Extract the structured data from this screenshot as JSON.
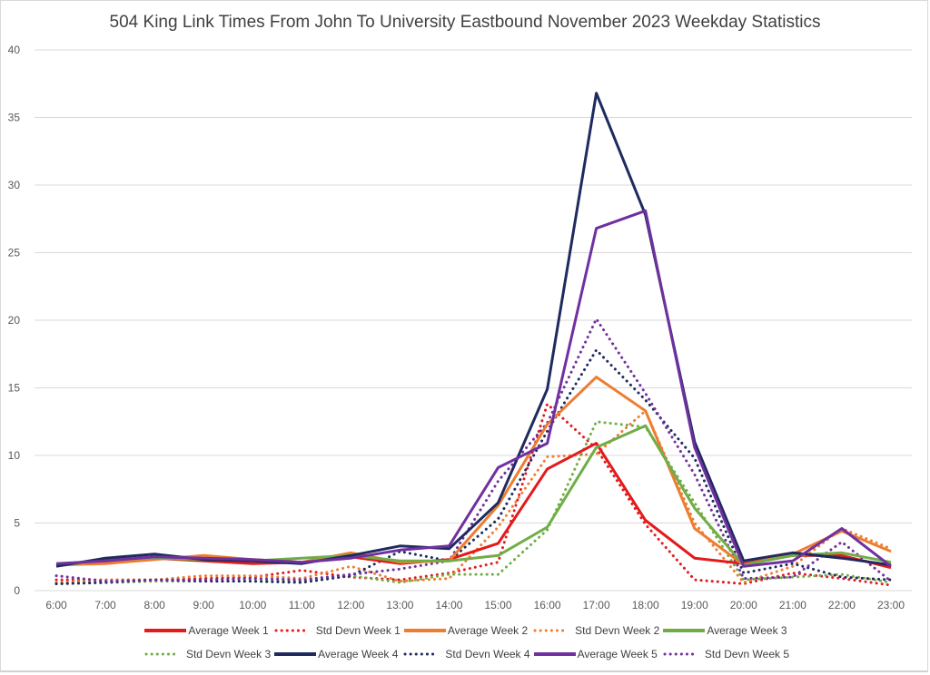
{
  "chart_data": {
    "type": "line",
    "title": "504 King Link Times From John To University Eastbound November 2023 Weekday Statistics",
    "xlabel": "",
    "ylabel": "",
    "ylim": [
      0,
      40
    ],
    "yticks": [
      "0",
      "5",
      "10",
      "15",
      "20",
      "25",
      "30",
      "35",
      "40"
    ],
    "grid": true,
    "legend_position": "bottom",
    "categories": [
      "6:00",
      "7:00",
      "8:00",
      "9:00",
      "10:00",
      "11:00",
      "12:00",
      "13:00",
      "14:00",
      "15:00",
      "16:00",
      "17:00",
      "18:00",
      "19:00",
      "20:00",
      "21:00",
      "22:00",
      "23:00"
    ],
    "series": [
      {
        "name": "Average Week 1",
        "color": "#e31a1c",
        "style": "solid",
        "values": [
          1.9,
          2.1,
          2.4,
          2.2,
          2.0,
          2.1,
          2.5,
          2.0,
          2.3,
          3.5,
          9.0,
          10.9,
          5.2,
          2.4,
          2.0,
          2.6,
          2.6,
          1.7
        ]
      },
      {
        "name": "Std Devn Week 1",
        "color": "#e31a1c",
        "style": "dotted",
        "values": [
          0.8,
          0.8,
          0.8,
          0.9,
          1.0,
          1.5,
          1.0,
          0.8,
          1.3,
          2.1,
          13.8,
          10.5,
          4.9,
          0.8,
          0.5,
          1.3,
          0.9,
          0.4
        ]
      },
      {
        "name": "Average Week 2",
        "color": "#ed7d31",
        "style": "solid",
        "values": [
          1.9,
          2.0,
          2.3,
          2.6,
          2.3,
          2.1,
          2.8,
          2.1,
          2.2,
          6.3,
          12.3,
          15.8,
          13.3,
          4.6,
          1.9,
          2.7,
          4.4,
          2.9
        ]
      },
      {
        "name": "Std Devn Week 2",
        "color": "#ed7d31",
        "style": "dotted",
        "values": [
          0.6,
          0.8,
          0.8,
          1.1,
          1.1,
          0.9,
          1.8,
          0.7,
          0.9,
          4.7,
          9.9,
          10.1,
          13.3,
          5.0,
          0.6,
          1.8,
          4.6,
          3.1
        ]
      },
      {
        "name": "Average Week 3",
        "color": "#70ad47",
        "style": "solid",
        "values": [
          1.8,
          2.3,
          2.4,
          2.3,
          2.2,
          2.4,
          2.6,
          2.2,
          2.2,
          2.6,
          4.7,
          10.6,
          12.2,
          6.1,
          1.9,
          2.6,
          2.8,
          2.1
        ]
      },
      {
        "name": "Std Devn Week 3",
        "color": "#70ad47",
        "style": "dotted",
        "values": [
          0.5,
          0.6,
          0.7,
          0.7,
          0.7,
          0.7,
          1.1,
          0.6,
          1.2,
          1.2,
          4.5,
          12.5,
          12.1,
          6.5,
          0.8,
          1.0,
          1.2,
          0.6
        ]
      },
      {
        "name": "Average Week 4",
        "color": "#1f2a5e",
        "style": "solid",
        "values": [
          1.8,
          2.4,
          2.7,
          2.3,
          2.2,
          2.0,
          2.6,
          3.3,
          3.1,
          6.5,
          14.9,
          36.8,
          27.8,
          11.0,
          2.2,
          2.8,
          2.4,
          1.9
        ]
      },
      {
        "name": "Std Devn Week 4",
        "color": "#1f2a5e",
        "style": "dotted",
        "values": [
          0.5,
          0.6,
          0.8,
          0.7,
          0.7,
          0.6,
          1.1,
          2.9,
          2.2,
          5.3,
          11.8,
          17.8,
          14.1,
          9.8,
          1.3,
          2.0,
          1.0,
          0.8
        ]
      },
      {
        "name": "Average Week 5",
        "color": "#7030a0",
        "style": "solid",
        "values": [
          2.0,
          2.2,
          2.5,
          2.4,
          2.3,
          2.1,
          2.4,
          3.0,
          3.3,
          9.1,
          10.9,
          26.8,
          28.1,
          10.6,
          1.8,
          2.2,
          4.6,
          1.8
        ]
      },
      {
        "name": "Std Devn Week 5",
        "color": "#7030a0",
        "style": "dotted",
        "values": [
          1.1,
          0.7,
          0.8,
          0.8,
          0.9,
          0.8,
          1.2,
          1.6,
          2.2,
          8.1,
          12.4,
          20.1,
          14.6,
          8.6,
          0.9,
          1.0,
          3.6,
          0.7
        ]
      }
    ]
  }
}
